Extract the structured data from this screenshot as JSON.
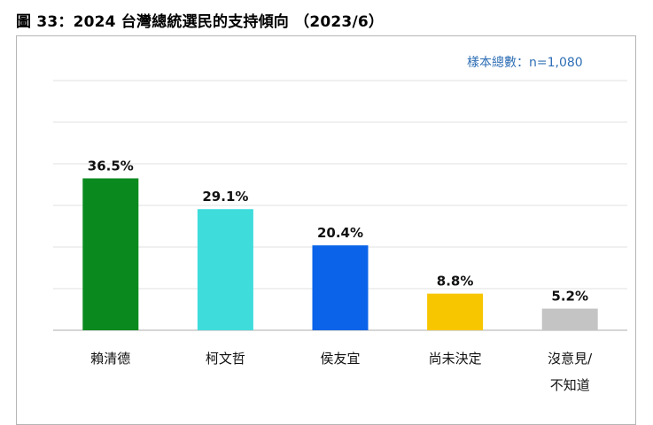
{
  "figure_title": "圖 33：2024 台灣總統選民的支持傾向 （2023/6）",
  "sample_note": "樣本總數：n=1,080",
  "chart_data": {
    "type": "bar",
    "categories": [
      [
        "賴清德"
      ],
      [
        "柯文哲"
      ],
      [
        "侯友宜"
      ],
      [
        "尚未決定"
      ],
      [
        "沒意見/",
        "不知道"
      ]
    ],
    "values": [
      36.5,
      29.1,
      20.4,
      8.8,
      5.2
    ],
    "value_labels": [
      "36.5%",
      "29.1%",
      "20.4%",
      "8.8%",
      "5.2%"
    ],
    "colors": [
      "#0a8a1e",
      "#3fdcdc",
      "#0a63e8",
      "#f7c600",
      "#c4c4c4"
    ],
    "ylim": [
      0,
      60
    ],
    "grid": true
  }
}
